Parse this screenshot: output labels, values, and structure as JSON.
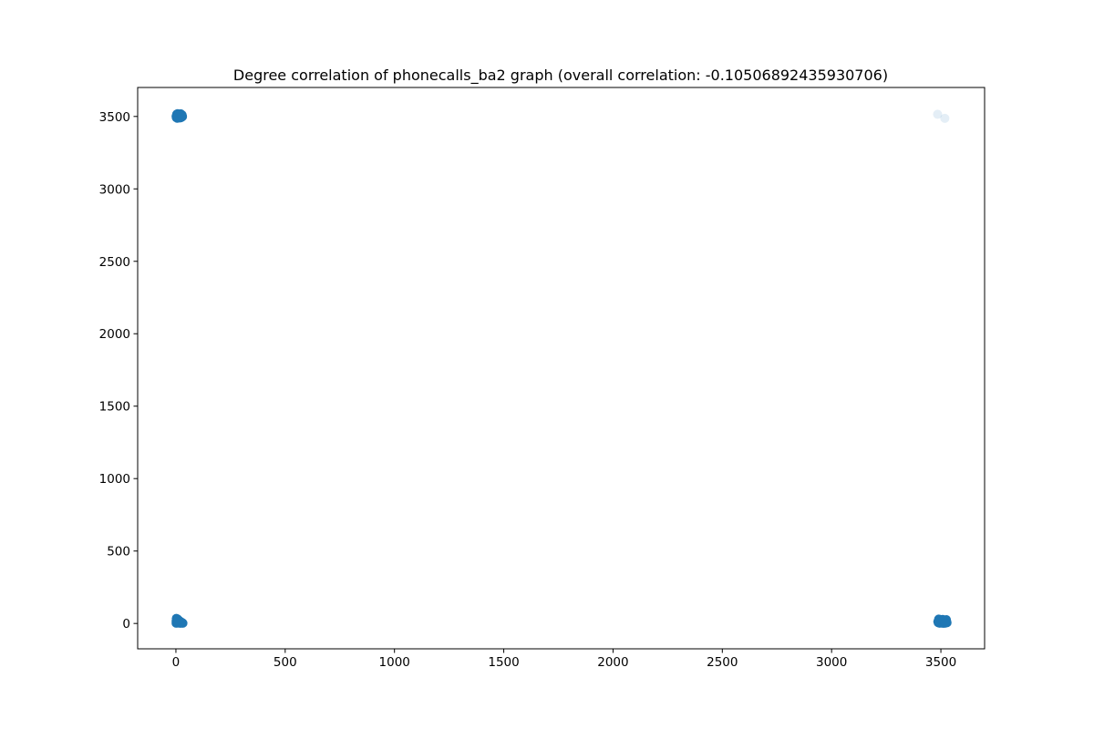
{
  "chart_data": {
    "type": "scatter",
    "title": "Degree correlation of phonecalls_ba2 graph (overall correlation: -0.10506892435930706)",
    "xlabel": "",
    "ylabel": "",
    "xlim": [
      -175,
      3700
    ],
    "ylim": [
      -175,
      3700
    ],
    "xticks": [
      0,
      500,
      1000,
      1500,
      2000,
      2500,
      3000,
      3500
    ],
    "yticks": [
      0,
      500,
      1000,
      1500,
      2000,
      2500,
      3000,
      3500
    ],
    "grid": false,
    "legend": "none",
    "marker_color": "#1f77b4",
    "series": [
      {
        "points": [
          [
            1,
            3500
          ],
          [
            3,
            3510
          ],
          [
            5,
            3495
          ],
          [
            7,
            3505
          ],
          [
            9,
            3515
          ],
          [
            11,
            3500
          ],
          [
            13,
            3490
          ],
          [
            15,
            3508
          ],
          [
            17,
            3512
          ],
          [
            19,
            3498
          ],
          [
            21,
            3503
          ],
          [
            23,
            3493
          ],
          [
            25,
            3510
          ],
          [
            27,
            3500
          ],
          [
            29,
            3505
          ],
          [
            2,
            3492
          ],
          [
            4,
            3516
          ],
          [
            6,
            3488
          ],
          [
            8,
            3519
          ],
          [
            10,
            3495
          ],
          [
            12,
            3507
          ],
          [
            14,
            3514
          ],
          [
            16,
            3496
          ],
          [
            18,
            3506
          ],
          [
            20,
            3490
          ],
          [
            22,
            3518
          ],
          [
            24,
            3501
          ],
          [
            26,
            3494
          ],
          [
            28,
            3511
          ],
          [
            30,
            3499
          ],
          [
            1,
            2
          ],
          [
            2,
            5
          ],
          [
            3,
            8
          ],
          [
            4,
            12
          ],
          [
            5,
            15
          ],
          [
            6,
            20
          ],
          [
            7,
            25
          ],
          [
            8,
            30
          ],
          [
            9,
            3
          ],
          [
            10,
            10
          ],
          [
            11,
            18
          ],
          [
            12,
            6
          ],
          [
            13,
            22
          ],
          [
            14,
            9
          ],
          [
            15,
            14
          ],
          [
            16,
            4
          ],
          [
            17,
            11
          ],
          [
            18,
            16
          ],
          [
            19,
            7
          ],
          [
            20,
            2
          ],
          [
            22,
            8
          ],
          [
            24,
            5
          ],
          [
            26,
            3
          ],
          [
            28,
            6
          ],
          [
            30,
            4
          ],
          [
            32,
            2
          ],
          [
            3,
            28
          ],
          [
            5,
            26
          ],
          [
            7,
            18
          ],
          [
            2,
            35
          ],
          [
            4,
            32
          ],
          [
            6,
            29
          ],
          [
            9,
            24
          ],
          [
            12,
            20
          ],
          [
            15,
            5
          ],
          [
            18,
            3
          ],
          [
            21,
            12
          ],
          [
            25,
            9
          ],
          [
            1,
            15
          ],
          [
            3488,
            5
          ],
          [
            3492,
            15
          ],
          [
            3495,
            25
          ],
          [
            3498,
            8
          ],
          [
            3500,
            20
          ],
          [
            3503,
            3
          ],
          [
            3505,
            12
          ],
          [
            3508,
            28
          ],
          [
            3510,
            6
          ],
          [
            3512,
            18
          ],
          [
            3515,
            10
          ],
          [
            3518,
            22
          ],
          [
            3520,
            4
          ],
          [
            3522,
            14
          ],
          [
            3525,
            26
          ],
          [
            3527,
            7
          ],
          [
            3490,
            30
          ],
          [
            3494,
            2
          ],
          [
            3497,
            17
          ],
          [
            3501,
            9
          ],
          [
            3506,
            24
          ],
          [
            3511,
            1
          ],
          [
            3516,
            16
          ],
          [
            3521,
            11
          ],
          [
            3526,
            19
          ],
          [
            3528,
            5
          ],
          [
            3486,
            13
          ],
          [
            3499,
            27
          ],
          [
            3509,
            23
          ],
          [
            3519,
            2
          ]
        ],
        "alpha": 1.0
      },
      {
        "points": [
          [
            3485,
            3515
          ],
          [
            3518,
            3487
          ]
        ],
        "alpha": 0.12
      }
    ]
  }
}
